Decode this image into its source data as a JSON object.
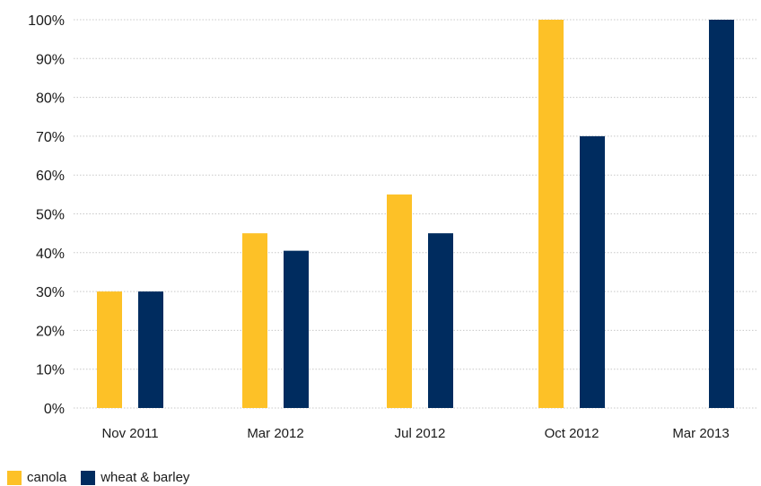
{
  "chart_data": {
    "type": "bar",
    "categories": [
      "Nov 2011",
      "Mar 2012",
      "Jul 2012",
      "Oct 2012",
      "Mar 2013"
    ],
    "series": [
      {
        "name": "canola",
        "color": "#fdc127",
        "values": [
          30,
          45,
          55,
          100,
          null
        ]
      },
      {
        "name": "wheat & barley",
        "color": "#002c5f",
        "values": [
          30,
          40.5,
          45,
          70,
          100
        ]
      }
    ],
    "ylim": [
      0,
      100
    ],
    "yticks": [
      "0%",
      "10%",
      "20%",
      "30%",
      "40%",
      "50%",
      "60%",
      "70%",
      "80%",
      "90%",
      "100%"
    ],
    "ytick_values": [
      0,
      10,
      20,
      30,
      40,
      50,
      60,
      70,
      80,
      90,
      100
    ],
    "grid": true,
    "legend_position": "bottom-left"
  }
}
